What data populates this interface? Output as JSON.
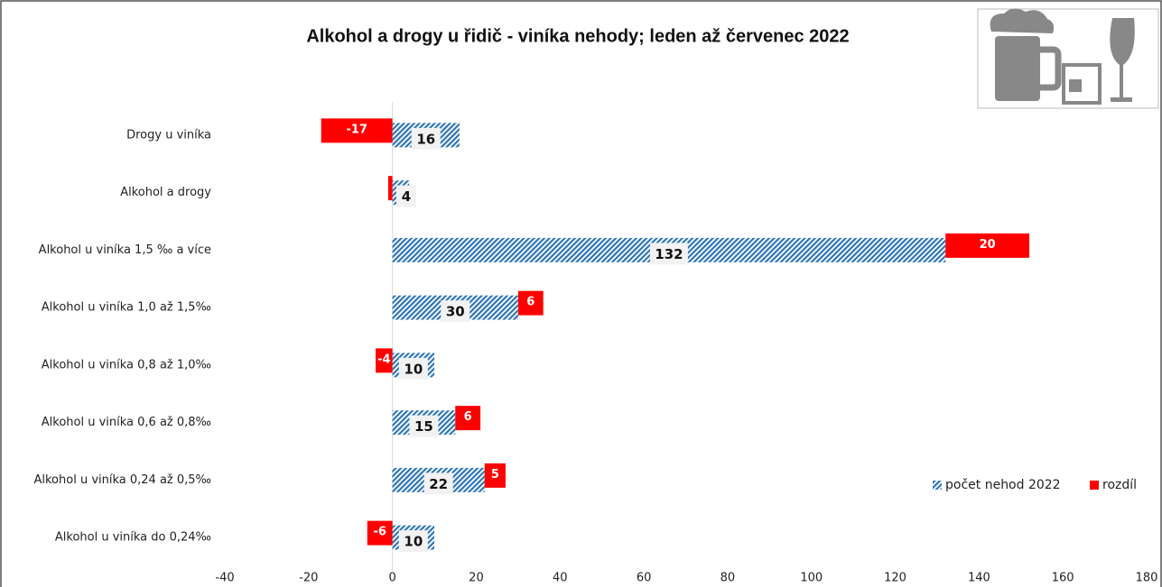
{
  "chart_data": {
    "type": "bar",
    "orientation": "horizontal",
    "stacked": true,
    "title": "Alkohol a drogy u řidič - viníka nehody; leden až červenec 2022",
    "categories": [
      "Drogy u viníka",
      "Alkohol a drogy",
      "Alkohol u viníka 1,5 ‰ a více",
      "Alkohol u viníka 1,0 až 1,5‰",
      "Alkohol u viníka  0,8 až 1,0‰",
      "Alkohol u viníka  0,6 až 0,8‰",
      "Alkohol u viníka  0,24 až 0,5‰",
      "Alkohol u viníka do 0,24‰"
    ],
    "series": [
      {
        "name": "počet nehod 2022",
        "color": "#2e75b6",
        "values": [
          16,
          4,
          132,
          30,
          10,
          15,
          22,
          10
        ]
      },
      {
        "name": "rozdíl",
        "color": "#ff0000",
        "values": [
          -17,
          -1,
          20,
          6,
          -4,
          6,
          5,
          -6
        ],
        "value_labels": [
          "-17",
          null,
          "20",
          "6",
          "-4",
          "6",
          "5",
          "-6"
        ]
      }
    ],
    "xlim": [
      -40,
      180
    ],
    "xticks": [
      -40,
      -20,
      0,
      20,
      40,
      60,
      80,
      100,
      120,
      140,
      160,
      180
    ],
    "legend": "lower right"
  }
}
